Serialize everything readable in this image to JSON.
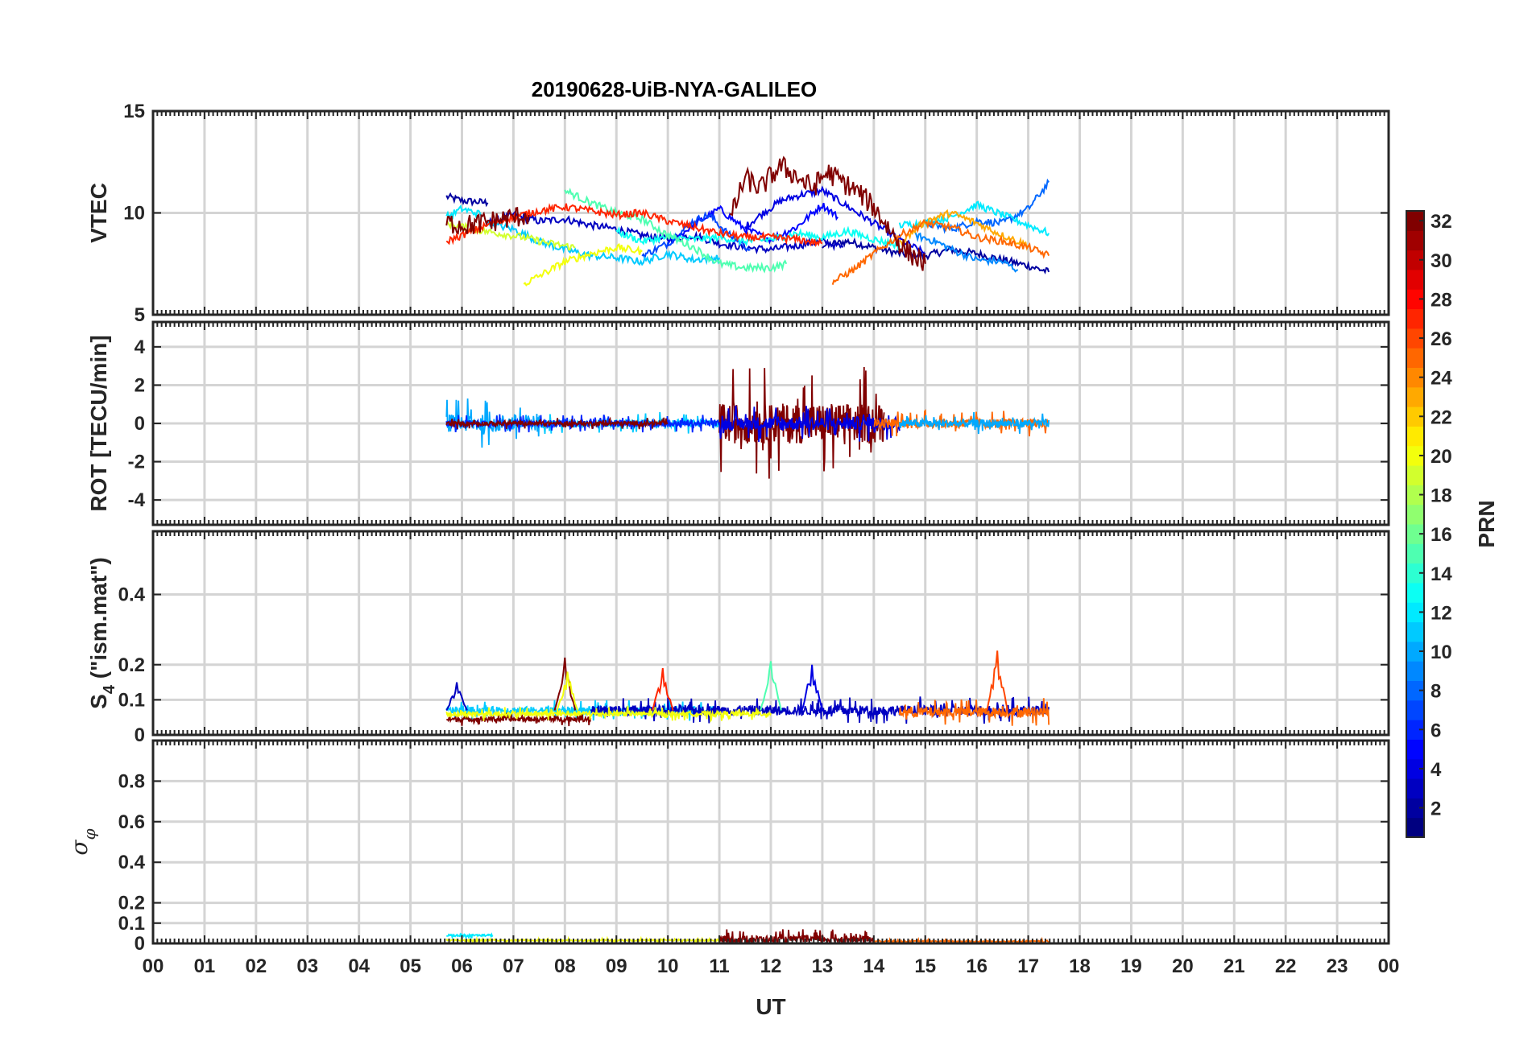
{
  "chart_data": {
    "title": "20190628-UiB-NYA-GALILEO",
    "type": "line",
    "xlabel": "UT",
    "xlim": [
      0,
      24
    ],
    "xticks": [
      "00",
      "01",
      "02",
      "03",
      "04",
      "05",
      "06",
      "07",
      "08",
      "09",
      "10",
      "11",
      "12",
      "13",
      "14",
      "15",
      "16",
      "17",
      "18",
      "19",
      "20",
      "21",
      "22",
      "23",
      "00"
    ],
    "grid": true,
    "colormap": "jet",
    "colorbar": {
      "label": "PRN",
      "range": [
        1,
        32
      ],
      "ticks": [
        2,
        4,
        6,
        8,
        10,
        12,
        14,
        16,
        18,
        20,
        22,
        24,
        26,
        28,
        30,
        32
      ],
      "placement": "right"
    },
    "panels": [
      {
        "ylabel": "VTEC",
        "ylim": [
          5,
          15
        ],
        "yticks": [
          5,
          10,
          15
        ],
        "series": [
          {
            "prn": 2,
            "points": [
              [
                5.7,
                10.8
              ],
              [
                6.0,
                10.6
              ],
              [
                6.5,
                10.5
              ]
            ]
          },
          {
            "prn": 2,
            "points": [
              [
                13.0,
                8.4
              ],
              [
                13.5,
                8.6
              ],
              [
                14.0,
                8.3
              ],
              [
                14.5,
                8.0
              ],
              [
                15.0,
                7.9
              ],
              [
                15.5,
                8.2
              ],
              [
                16.0,
                8.0
              ],
              [
                16.5,
                7.7
              ],
              [
                17.0,
                7.4
              ],
              [
                17.4,
                7.1
              ]
            ]
          },
          {
            "prn": 3,
            "points": [
              [
                6.5,
                9.5
              ],
              [
                7.0,
                9.9
              ],
              [
                7.5,
                9.6
              ],
              [
                8.0,
                9.7
              ],
              [
                8.5,
                9.4
              ],
              [
                9.0,
                9.2
              ],
              [
                9.5,
                8.9
              ],
              [
                10.0,
                8.7
              ],
              [
                10.5,
                8.9
              ],
              [
                11.0,
                8.5
              ],
              [
                11.5,
                8.3
              ],
              [
                12.0,
                8.2
              ],
              [
                12.5,
                8.4
              ],
              [
                13.0,
                8.6
              ],
              [
                13.4,
                8.3
              ]
            ]
          },
          {
            "prn": 4,
            "points": [
              [
                11.5,
                9.3
              ],
              [
                11.8,
                9.9
              ],
              [
                12.2,
                10.6
              ],
              [
                12.6,
                10.9
              ],
              [
                13.0,
                11.1
              ],
              [
                13.5,
                10.3
              ],
              [
                14.0,
                9.5
              ],
              [
                14.5,
                8.7
              ],
              [
                15.0,
                8.0
              ]
            ]
          },
          {
            "prn": 5,
            "points": [
              [
                10.0,
                8.5
              ],
              [
                10.5,
                9.4
              ],
              [
                11.0,
                10.2
              ],
              [
                11.5,
                9.2
              ],
              [
                12.0,
                8.7
              ],
              [
                12.5,
                9.3
              ],
              [
                13.0,
                10.4
              ],
              [
                13.3,
                9.8
              ]
            ]
          },
          {
            "prn": 7,
            "points": [
              [
                9.5,
                7.9
              ],
              [
                10.0,
                8.5
              ],
              [
                10.5,
                9.6
              ],
              [
                10.8,
                9.9
              ],
              [
                11.2,
                8.9
              ],
              [
                11.6,
                8.2
              ]
            ]
          },
          {
            "prn": 8,
            "points": [
              [
                15.0,
                9.5
              ],
              [
                15.5,
                9.2
              ],
              [
                16.0,
                9.6
              ],
              [
                16.5,
                9.5
              ],
              [
                17.0,
                10.2
              ],
              [
                17.4,
                11.5
              ]
            ]
          },
          {
            "prn": 9,
            "points": [
              [
                14.8,
                8.9
              ],
              [
                15.2,
                8.6
              ],
              [
                15.6,
                8.1
              ],
              [
                16.0,
                7.7
              ],
              [
                16.5,
                7.6
              ],
              [
                16.8,
                7.2
              ]
            ]
          },
          {
            "prn": 11,
            "points": [
              [
                6.5,
                9.5
              ],
              [
                7.0,
                9.2
              ],
              [
                7.5,
                8.6
              ],
              [
                8.0,
                8.2
              ],
              [
                8.5,
                7.9
              ],
              [
                9.0,
                7.8
              ],
              [
                9.5,
                7.6
              ],
              [
                10.0,
                8.0
              ],
              [
                10.5,
                7.7
              ],
              [
                11.0,
                7.8
              ]
            ]
          },
          {
            "prn": 12,
            "points": [
              [
                5.7,
                9.8
              ],
              [
                6.0,
                10.2
              ],
              [
                6.4,
                9.9
              ]
            ]
          },
          {
            "prn": 12,
            "points": [
              [
                14.5,
                9.4
              ],
              [
                15.0,
                9.5
              ],
              [
                15.5,
                9.8
              ],
              [
                16.0,
                10.4
              ],
              [
                16.5,
                9.9
              ],
              [
                17.0,
                9.4
              ],
              [
                17.4,
                9.0
              ]
            ]
          },
          {
            "prn": 13,
            "points": [
              [
                9.0,
                9.1
              ],
              [
                9.5,
                8.6
              ],
              [
                10.0,
                8.8
              ],
              [
                10.5,
                8.7
              ],
              [
                11.0,
                8.8
              ],
              [
                11.5,
                8.6
              ],
              [
                12.0,
                8.7
              ],
              [
                12.5,
                9.0
              ],
              [
                13.0,
                8.8
              ],
              [
                13.5,
                9.1
              ],
              [
                14.0,
                8.7
              ],
              [
                14.5,
                8.4
              ]
            ]
          },
          {
            "prn": 15,
            "points": [
              [
                8.0,
                11.1
              ],
              [
                8.5,
                10.5
              ],
              [
                9.0,
                10.0
              ],
              [
                9.5,
                9.7
              ],
              [
                10.0,
                8.9
              ],
              [
                10.5,
                8.3
              ],
              [
                11.0,
                7.5
              ],
              [
                11.5,
                7.3
              ],
              [
                12.0,
                7.3
              ],
              [
                12.3,
                7.5
              ]
            ]
          },
          {
            "prn": 19,
            "points": [
              [
                5.7,
                9.5
              ],
              [
                6.2,
                9.2
              ],
              [
                6.7,
                9.0
              ],
              [
                7.2,
                8.8
              ],
              [
                7.7,
                8.5
              ],
              [
                8.2,
                8.3
              ]
            ]
          },
          {
            "prn": 20,
            "points": [
              [
                7.2,
                6.5
              ],
              [
                7.5,
                6.9
              ],
              [
                8.0,
                7.6
              ],
              [
                8.5,
                8.0
              ],
              [
                9.0,
                8.3
              ],
              [
                9.5,
                8.1
              ]
            ]
          },
          {
            "prn": 23,
            "points": [
              [
                14.5,
                8.5
              ],
              [
                15.0,
                9.6
              ],
              [
                15.5,
                10.0
              ],
              [
                16.0,
                9.5
              ],
              [
                16.5,
                8.9
              ],
              [
                17.0,
                8.4
              ]
            ]
          },
          {
            "prn": 25,
            "points": [
              [
                13.2,
                6.6
              ],
              [
                13.6,
                7.2
              ],
              [
                14.0,
                8.0
              ],
              [
                14.5,
                8.9
              ],
              [
                15.0,
                9.5
              ],
              [
                15.5,
                9.3
              ],
              [
                16.0,
                8.8
              ],
              [
                16.5,
                8.6
              ],
              [
                17.0,
                8.3
              ],
              [
                17.4,
                7.9
              ]
            ]
          },
          {
            "prn": 27,
            "points": [
              [
                5.7,
                8.6
              ],
              [
                6.0,
                8.9
              ],
              [
                6.5,
                9.4
              ],
              [
                7.0,
                9.8
              ],
              [
                7.5,
                10.1
              ],
              [
                8.0,
                10.3
              ],
              [
                8.5,
                10.1
              ],
              [
                9.0,
                9.9
              ],
              [
                9.5,
                10.0
              ],
              [
                10.0,
                9.6
              ],
              [
                10.5,
                9.3
              ],
              [
                11.0,
                9.0
              ],
              [
                11.5,
                8.8
              ],
              [
                12.0,
                8.8
              ],
              [
                12.5,
                8.7
              ],
              [
                13.0,
                8.5
              ]
            ]
          },
          {
            "prn": 32,
            "points": [
              [
                5.7,
                9.5
              ],
              [
                6.2,
                9.4
              ],
              [
                6.8,
                9.7
              ],
              [
                7.3,
                9.9
              ]
            ]
          },
          {
            "prn": 32,
            "points": [
              [
                11.2,
                9.6
              ],
              [
                11.5,
                11.7
              ],
              [
                11.8,
                11.2
              ],
              [
                12.0,
                11.8
              ],
              [
                12.2,
                12.3
              ],
              [
                12.5,
                11.8
              ],
              [
                12.8,
                11.2
              ],
              [
                13.1,
                12.0
              ],
              [
                13.4,
                11.5
              ],
              [
                13.7,
                11.0
              ],
              [
                14.0,
                10.3
              ],
              [
                14.3,
                9.2
              ],
              [
                14.6,
                8.2
              ],
              [
                15.0,
                7.5
              ]
            ]
          }
        ]
      },
      {
        "ylabel": "ROT [TECU/min]",
        "ylim": [
          -5.3,
          5.3
        ],
        "yticks": [
          -4,
          -2,
          0,
          2,
          4
        ],
        "noise_bands": [
          {
            "prn": 10,
            "x": [
              5.7,
              7.5
            ],
            "amplitude": 1.3
          },
          {
            "prn": 11,
            "x": [
              7.5,
              11.0
            ],
            "amplitude": 0.6
          },
          {
            "prn": 6,
            "x": [
              5.7,
              11.0
            ],
            "amplitude": 0.5
          },
          {
            "prn": 32,
            "x": [
              5.7,
              10.0
            ],
            "amplitude": 0.3
          },
          {
            "prn": 32,
            "x": [
              11.0,
              14.2
            ],
            "amplitude": 3.0
          },
          {
            "prn": 4,
            "x": [
              11.0,
              14.5
            ],
            "amplitude": 1.0
          },
          {
            "prn": 25,
            "x": [
              14.0,
              17.4
            ],
            "amplitude": 0.7
          },
          {
            "prn": 10,
            "x": [
              14.5,
              17.4
            ],
            "amplitude": 0.6
          }
        ]
      },
      {
        "ylabel": "S4 (\"ism.mat\")",
        "ylabel_main": "S",
        "ylabel_sub": "4",
        "ylabel_rest": " (\"ism.mat\")",
        "ylim": [
          0,
          0.58
        ],
        "yticks": [
          0,
          0.1,
          0.2,
          0.4
        ],
        "noise_bands": [
          {
            "prn": 11,
            "x": [
              5.7,
              11.0
            ],
            "base": 0.07,
            "amplitude": 0.03
          },
          {
            "prn": 32,
            "x": [
              5.7,
              8.5
            ],
            "base": 0.045,
            "amplitude": 0.02
          },
          {
            "prn": 3,
            "x": [
              8.5,
              17.4
            ],
            "base": 0.07,
            "amplitude": 0.04
          },
          {
            "prn": 25,
            "x": [
              14.5,
              17.4
            ],
            "base": 0.065,
            "amplitude": 0.04
          },
          {
            "prn": 20,
            "x": [
              5.7,
              12.0
            ],
            "base": 0.06,
            "amplitude": 0.02
          }
        ],
        "peaks": [
          {
            "prn": 3,
            "x": 5.9,
            "y": 0.15
          },
          {
            "prn": 32,
            "x": 8.0,
            "y": 0.22
          },
          {
            "prn": 20,
            "x": 8.05,
            "y": 0.18
          },
          {
            "prn": 27,
            "x": 9.9,
            "y": 0.19
          },
          {
            "prn": 15,
            "x": 12.0,
            "y": 0.21
          },
          {
            "prn": 4,
            "x": 12.8,
            "y": 0.2
          },
          {
            "prn": 26,
            "x": 16.4,
            "y": 0.24
          }
        ]
      },
      {
        "ylabel": "σ_φ",
        "ylabel_main": "σ",
        "ylabel_sub": "φ",
        "ylim": [
          0,
          1
        ],
        "yticks": [
          0,
          0.1,
          0.2,
          0.4,
          0.6,
          0.8
        ],
        "noise_bands": [
          {
            "prn": 12,
            "x": [
              5.7,
              6.6
            ],
            "base": 0.04,
            "amplitude": 0.015
          },
          {
            "prn": 20,
            "x": [
              5.7,
              11.0
            ],
            "base": 0.015,
            "amplitude": 0.01
          },
          {
            "prn": 32,
            "x": [
              11.0,
              14.0
            ],
            "base": 0.02,
            "amplitude": 0.05
          },
          {
            "prn": 25,
            "x": [
              14.0,
              17.4
            ],
            "base": 0.01,
            "amplitude": 0.01
          }
        ]
      }
    ]
  }
}
